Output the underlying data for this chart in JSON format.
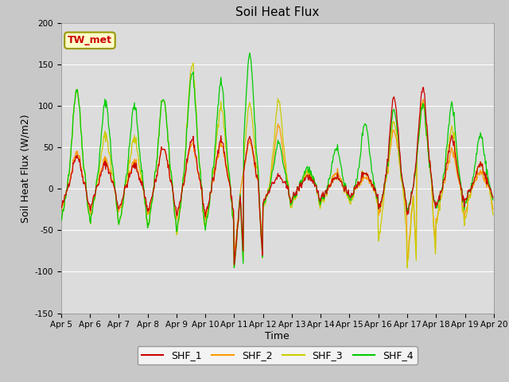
{
  "title": "Soil Heat Flux",
  "ylabel": "Soil Heat Flux (W/m2)",
  "xlabel": "Time",
  "ylim": [
    -150,
    200
  ],
  "fig_bg_color": "#c8c8c8",
  "plot_bg_color": "#dcdcdc",
  "grid_color": "white",
  "annotation_text": "TW_met",
  "annotation_bg": "#ffffcc",
  "annotation_border": "#999900",
  "annotation_text_color": "#cc0000",
  "colors": {
    "SHF_1": "#cc0000",
    "SHF_2": "#ff9900",
    "SHF_3": "#cccc00",
    "SHF_4": "#00cc00"
  },
  "legend_labels": [
    "SHF_1",
    "SHF_2",
    "SHF_3",
    "SHF_4"
  ],
  "xtick_labels": [
    "Apr 5",
    "Apr 6",
    "Apr 7",
    "Apr 8",
    "Apr 9",
    "Apr 10",
    "Apr 11",
    "Apr 12",
    "Apr 13",
    "Apr 14",
    "Apr 15",
    "Apr 16",
    "Apr 17",
    "Apr 18",
    "Apr 19",
    "Apr 20"
  ],
  "ytick_labels": [
    -150,
    -100,
    -50,
    0,
    50,
    100,
    150,
    200
  ],
  "title_fontsize": 11,
  "axis_fontsize": 9,
  "tick_fontsize": 7.5
}
